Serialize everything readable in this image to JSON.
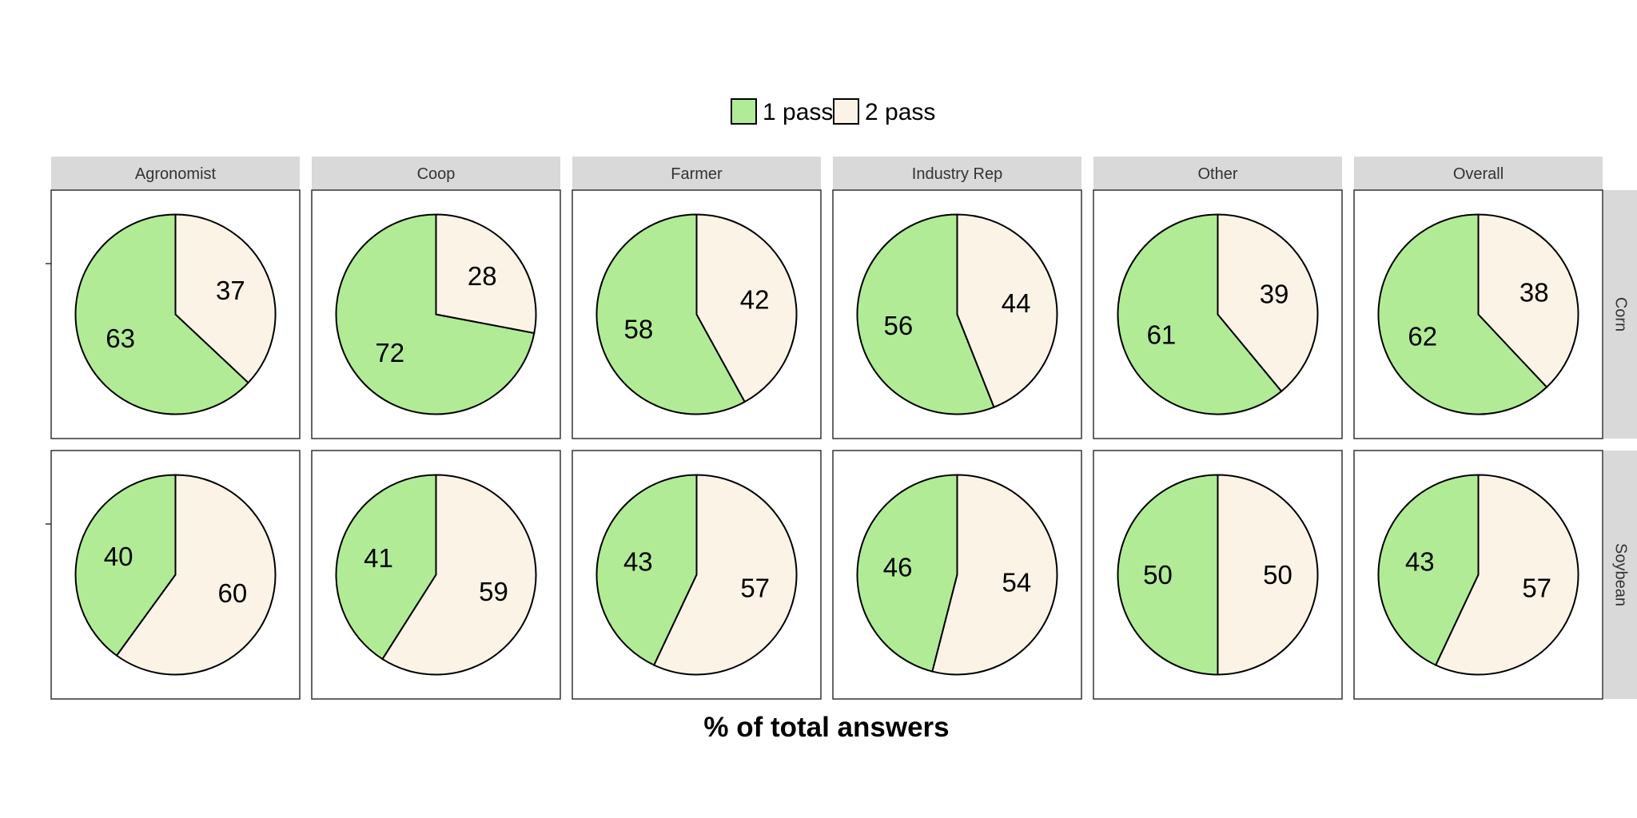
{
  "chart_data": {
    "type": "pie",
    "xlabel": "% of total answers",
    "columns": [
      "Agronomist",
      "Coop",
      "Farmer",
      "Industry Rep",
      "Other",
      "Overall"
    ],
    "rows": [
      "Corn",
      "Soybean"
    ],
    "legend": {
      "position": "top",
      "entries": [
        {
          "label": "1 pass",
          "color": "#b1eb96"
        },
        {
          "label": "2 pass",
          "color": "#faf3e6"
        }
      ]
    },
    "panels": [
      {
        "row": "Corn",
        "column": "Agronomist",
        "values": [
          {
            "category": "1 pass",
            "value": 63
          },
          {
            "category": "2 pass",
            "value": 37
          }
        ]
      },
      {
        "row": "Corn",
        "column": "Coop",
        "values": [
          {
            "category": "1 pass",
            "value": 72
          },
          {
            "category": "2 pass",
            "value": 28
          }
        ]
      },
      {
        "row": "Corn",
        "column": "Farmer",
        "values": [
          {
            "category": "1 pass",
            "value": 58
          },
          {
            "category": "2 pass",
            "value": 42
          }
        ]
      },
      {
        "row": "Corn",
        "column": "Industry Rep",
        "values": [
          {
            "category": "1 pass",
            "value": 56
          },
          {
            "category": "2 pass",
            "value": 44
          }
        ]
      },
      {
        "row": "Corn",
        "column": "Other",
        "values": [
          {
            "category": "1 pass",
            "value": 61
          },
          {
            "category": "2 pass",
            "value": 39
          }
        ]
      },
      {
        "row": "Corn",
        "column": "Overall",
        "values": [
          {
            "category": "1 pass",
            "value": 62
          },
          {
            "category": "2 pass",
            "value": 38
          }
        ]
      },
      {
        "row": "Soybean",
        "column": "Agronomist",
        "values": [
          {
            "category": "1 pass",
            "value": 40
          },
          {
            "category": "2 pass",
            "value": 60
          }
        ]
      },
      {
        "row": "Soybean",
        "column": "Coop",
        "values": [
          {
            "category": "1 pass",
            "value": 41
          },
          {
            "category": "2 pass",
            "value": 59
          }
        ]
      },
      {
        "row": "Soybean",
        "column": "Farmer",
        "values": [
          {
            "category": "1 pass",
            "value": 43
          },
          {
            "category": "2 pass",
            "value": 57
          }
        ]
      },
      {
        "row": "Soybean",
        "column": "Industry Rep",
        "values": [
          {
            "category": "1 pass",
            "value": 46
          },
          {
            "category": "2 pass",
            "value": 54
          }
        ]
      },
      {
        "row": "Soybean",
        "column": "Other",
        "values": [
          {
            "category": "1 pass",
            "value": 50
          },
          {
            "category": "2 pass",
            "value": 50
          }
        ]
      },
      {
        "row": "Soybean",
        "column": "Overall",
        "values": [
          {
            "category": "1 pass",
            "value": 43
          },
          {
            "category": "2 pass",
            "value": 57
          }
        ]
      }
    ]
  }
}
